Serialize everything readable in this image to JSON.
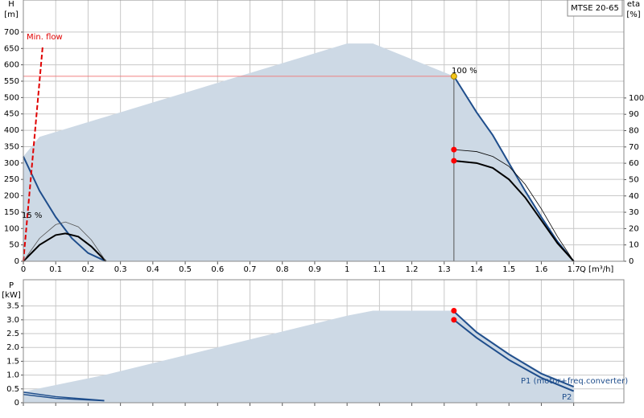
{
  "chart_data": [
    {
      "type": "line",
      "header": "MTSE 20-65",
      "ylabel": "H",
      "yunit": "[m]",
      "y2label": "eta",
      "y2unit": "[%]",
      "xlabel": "Q [m³/h]",
      "annotations": [
        "Min. flow",
        "100 %",
        "15 %"
      ],
      "xlim": [
        0,
        1.855
      ],
      "xticks": [
        0,
        0.1,
        0.2,
        0.3,
        0.4,
        0.5,
        0.6,
        0.7,
        0.8,
        0.9,
        1,
        1.1,
        1.2,
        1.3,
        1.4,
        1.5,
        1.6,
        1.7
      ],
      "ylim": [
        0,
        798
      ],
      "yticks": [
        0,
        50,
        100,
        150,
        200,
        250,
        300,
        350,
        400,
        450,
        500,
        550,
        600,
        650,
        700
      ],
      "y2lim": [
        0,
        160
      ],
      "y2ticks": [
        0,
        10,
        20,
        30,
        40,
        50,
        60,
        70,
        80,
        90,
        100
      ],
      "grid": true,
      "series": [
        {
          "kind": "area",
          "color": "#cdd9e5",
          "x": [
            0,
            0,
            0.05,
            1.0,
            1.08,
            1.33,
            1.4,
            1.45,
            1.5,
            1.55,
            1.6,
            1.65,
            1.7
          ],
          "values": [
            0,
            320,
            380,
            665,
            665,
            565,
            455,
            385,
            300,
            215,
            135,
            60,
            0
          ]
        },
        {
          "kind": "line",
          "color": "#1f4e8c",
          "width": 2,
          "x": [
            0,
            0.05,
            0.1,
            0.15,
            0.2,
            0.255
          ],
          "values": [
            320,
            215,
            135,
            70,
            25,
            0
          ]
        },
        {
          "kind": "line",
          "color": "#1f4e8c",
          "width": 2,
          "x": [
            1.33,
            1.4,
            1.45,
            1.5,
            1.55,
            1.6,
            1.65,
            1.7
          ],
          "values": [
            565,
            455,
            385,
            300,
            215,
            135,
            60,
            0
          ]
        },
        {
          "kind": "line",
          "color": "#000000",
          "width": 2,
          "x": [
            0,
            0.05,
            0.1,
            0.13,
            0.17,
            0.21,
            0.255
          ],
          "values": [
            0,
            50,
            80,
            85,
            75,
            45,
            0
          ]
        },
        {
          "kind": "line",
          "color": "#555555",
          "width": 0.8,
          "x": [
            0,
            0.05,
            0.1,
            0.13,
            0.17,
            0.21,
            0.255
          ],
          "values": [
            0,
            70,
            112,
            120,
            105,
            65,
            0
          ]
        },
        {
          "kind": "line",
          "color": "#000000",
          "width": 2,
          "x": [
            1.33,
            1.4,
            1.45,
            1.5,
            1.55,
            1.6,
            1.65,
            1.7
          ],
          "values": [
            307,
            300,
            285,
            250,
            195,
            125,
            55,
            0
          ]
        },
        {
          "kind": "line",
          "color": "#000000",
          "width": 0.8,
          "x": [
            1.33,
            1.4,
            1.45,
            1.5,
            1.55,
            1.6,
            1.65,
            1.7
          ],
          "values": [
            341,
            335,
            320,
            290,
            235,
            160,
            75,
            0
          ]
        },
        {
          "kind": "line",
          "color": "#f08080",
          "width": 1,
          "x": [
            0,
            1.33
          ],
          "values": [
            565,
            565
          ]
        },
        {
          "kind": "line",
          "color": "#555555",
          "width": 1,
          "x": [
            1.33,
            1.33
          ],
          "values": [
            0,
            565
          ]
        },
        {
          "kind": "line",
          "color": "#e00000",
          "width": 2,
          "dash": true,
          "x": [
            0,
            0.06
          ],
          "values": [
            0,
            660
          ]
        },
        {
          "kind": "points",
          "color": "#f5c518",
          "x": [
            1.33
          ],
          "values": [
            565
          ]
        },
        {
          "kind": "points",
          "color": "#ff0000",
          "x": [
            1.33,
            1.33
          ],
          "values": [
            341,
            307
          ]
        }
      ]
    },
    {
      "type": "line",
      "ylabel": "P",
      "yunit": "[kW]",
      "annotations": [
        "P1 (motor+freq.converter)",
        "P2"
      ],
      "xlim": [
        0,
        1.855
      ],
      "xticks": [
        0,
        0.1,
        0.2,
        0.3,
        0.4,
        0.5,
        0.6,
        0.7,
        0.8,
        0.9,
        1,
        1.1,
        1.2,
        1.3,
        1.4,
        1.5,
        1.6,
        1.7
      ],
      "ylim": [
        0,
        4.45
      ],
      "yticks": [
        0,
        0.5,
        {
          "value": 1,
          "label": "1.0"
        },
        1.5,
        {
          "value": 2,
          "label": "2.0"
        },
        2.5,
        {
          "value": 3,
          "label": "3.0"
        },
        3.5
      ],
      "grid": true,
      "series": [
        {
          "kind": "area",
          "color": "#cdd9e5",
          "x": [
            0,
            0,
            0.25,
            1.0,
            1.08,
            1.33,
            1.4,
            1.5,
            1.6,
            1.7,
            1.7
          ],
          "values": [
            0,
            0.4,
            1.0,
            3.15,
            3.33,
            3.33,
            2.6,
            1.8,
            1.1,
            0.6,
            0
          ]
        },
        {
          "kind": "line",
          "color": "#1f4e8c",
          "width": 2,
          "x": [
            1.33,
            1.4,
            1.5,
            1.6,
            1.7
          ],
          "values": [
            3.3,
            2.55,
            1.75,
            1.05,
            0.58
          ]
        },
        {
          "kind": "line",
          "color": "#1f4e8c",
          "width": 2,
          "x": [
            1.33,
            1.4,
            1.5,
            1.6,
            1.7
          ],
          "values": [
            3.0,
            2.35,
            1.55,
            0.9,
            0.42
          ]
        },
        {
          "kind": "line",
          "color": "#1f4e8c",
          "width": 1.5,
          "x": [
            0,
            0.1,
            0.25
          ],
          "values": [
            0.38,
            0.22,
            0.08
          ]
        },
        {
          "kind": "line",
          "color": "#1f4e8c",
          "width": 1.5,
          "x": [
            0,
            0.1,
            0.25
          ],
          "values": [
            0.3,
            0.16,
            0.07
          ]
        },
        {
          "kind": "points",
          "color": "#ff0000",
          "x": [
            1.33,
            1.33
          ],
          "values": [
            3.33,
            3.0
          ]
        }
      ]
    }
  ]
}
